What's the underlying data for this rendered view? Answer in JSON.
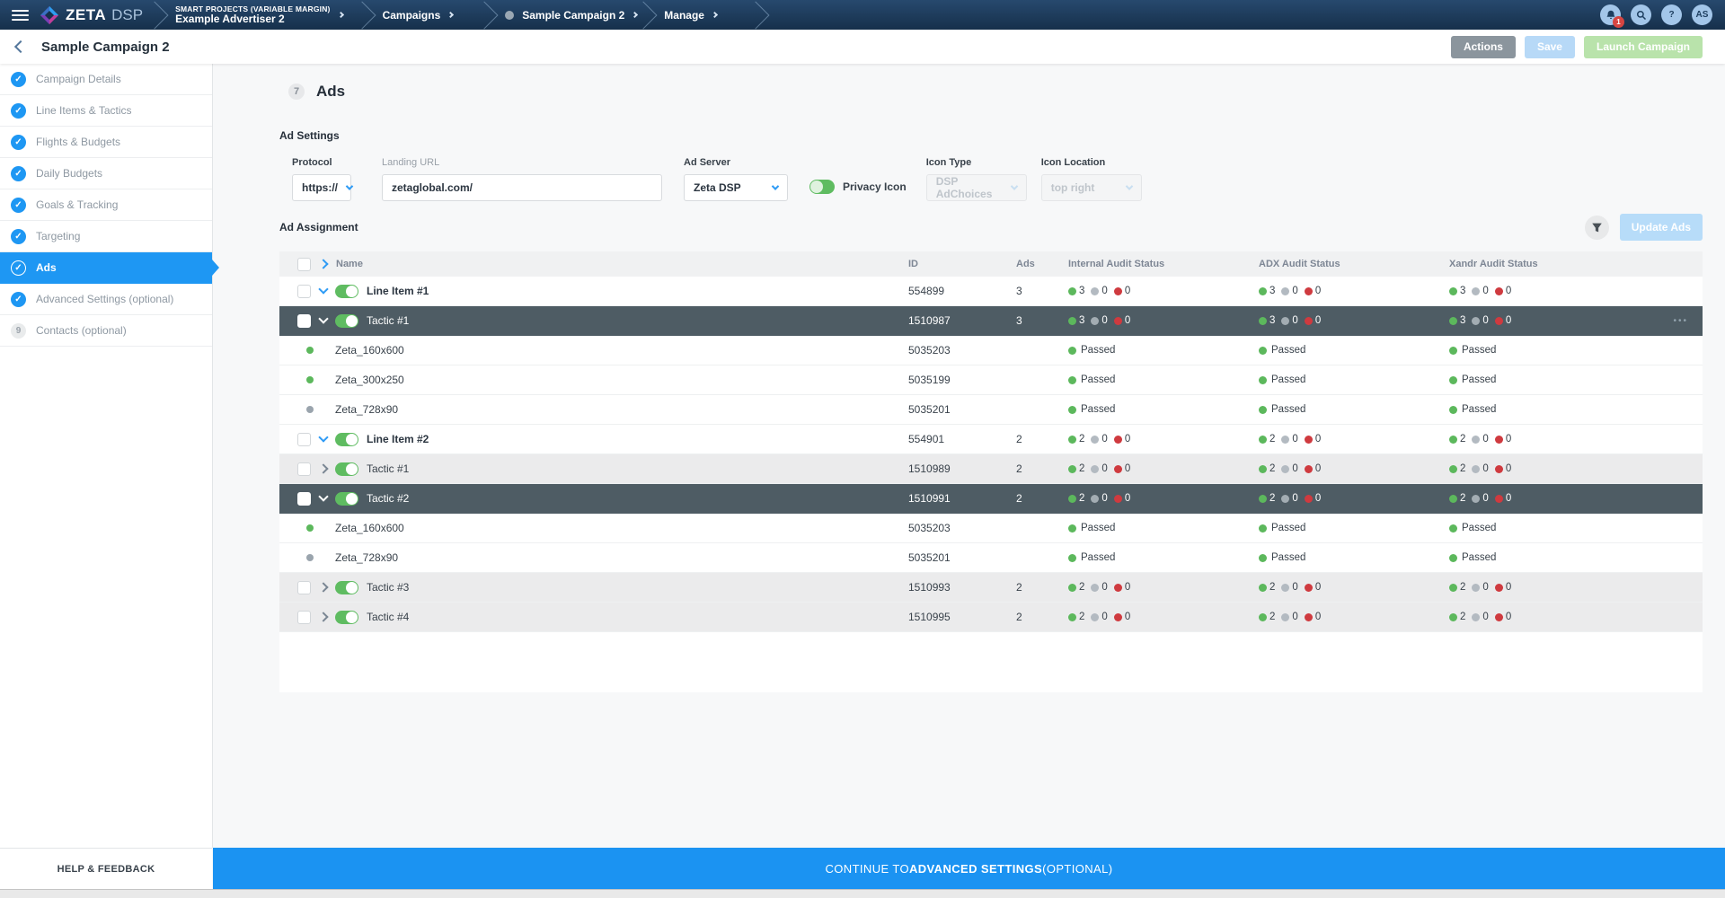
{
  "topnav": {
    "brand": "ZETA",
    "brand_suffix": "DSP",
    "breadcrumbs": {
      "project": "SMART PROJECTS (VARIABLE MARGIN)",
      "advertiser": "Example Advertiser 2",
      "campaigns": "Campaigns",
      "campaign": "Sample Campaign 2",
      "section": "Manage"
    },
    "notification_count": "1",
    "help_symbol": "?",
    "avatar_initials": "AS"
  },
  "header": {
    "title": "Sample Campaign 2",
    "actions_button": "Actions",
    "save_button": "Save",
    "launch_button": "Launch Campaign"
  },
  "sidebar": {
    "items": [
      {
        "label": "Campaign Details",
        "state": "done"
      },
      {
        "label": "Line Items & Tactics",
        "state": "done"
      },
      {
        "label": "Flights & Budgets",
        "state": "done"
      },
      {
        "label": "Daily Budgets",
        "state": "done"
      },
      {
        "label": "Goals & Tracking",
        "state": "done"
      },
      {
        "label": "Targeting",
        "state": "done"
      },
      {
        "label": "Ads",
        "state": "active"
      },
      {
        "label": "Advanced Settings (optional)",
        "state": "done"
      },
      {
        "label": "Contacts (optional)",
        "state": "pending",
        "number": "9"
      }
    ],
    "help_button": "HELP & FEEDBACK"
  },
  "main": {
    "step_number": "7",
    "title": "Ads",
    "ad_settings": {
      "heading": "Ad Settings",
      "protocol_label": "Protocol",
      "protocol_value": "https://",
      "landing_url_label": "Landing URL",
      "landing_url_value": "zetaglobal.com/",
      "ad_server_label": "Ad Server",
      "ad_server_value": "Zeta DSP",
      "privacy_icon_label": "Privacy Icon",
      "privacy_icon_enabled": true,
      "icon_type_label": "Icon Type",
      "icon_type_value": "DSP AdChoices",
      "icon_type_disabled": true,
      "icon_location_label": "Icon Location",
      "icon_location_value": "top right",
      "icon_location_disabled": true
    },
    "ad_assignment": {
      "heading": "Ad Assignment",
      "update_button": "Update Ads",
      "columns": [
        "Name",
        "ID",
        "Ads",
        "Internal Audit Status",
        "ADX Audit Status",
        "Xandr Audit Status"
      ],
      "rows": [
        {
          "type": "lineitem",
          "name": "Line Item #1",
          "id": "554899",
          "ads": "3",
          "expanded": true,
          "enabled": true,
          "selected": false,
          "shaded": false,
          "menu": false,
          "audits": [
            {
              "g": "3",
              "n": "0",
              "r": "0"
            },
            {
              "g": "3",
              "n": "0",
              "r": "0"
            },
            {
              "g": "3",
              "n": "0",
              "r": "0"
            }
          ]
        },
        {
          "type": "tactic",
          "name": "Tactic #1",
          "id": "1510987",
          "ads": "3",
          "expanded": true,
          "enabled": true,
          "selected": true,
          "shaded": false,
          "menu": true,
          "audits": [
            {
              "g": "3",
              "n": "0",
              "r": "0"
            },
            {
              "g": "3",
              "n": "0",
              "r": "0"
            },
            {
              "g": "3",
              "n": "0",
              "r": "0"
            }
          ]
        },
        {
          "type": "creative",
          "name": "Zeta_160x600",
          "id": "5035203",
          "dot": "green",
          "audits": [
            "Passed",
            "Passed",
            "Passed"
          ]
        },
        {
          "type": "creative",
          "name": "Zeta_300x250",
          "id": "5035199",
          "dot": "green",
          "audits": [
            "Passed",
            "Passed",
            "Passed"
          ]
        },
        {
          "type": "creative",
          "name": "Zeta_728x90",
          "id": "5035201",
          "dot": "gray",
          "audits": [
            "Passed",
            "Passed",
            "Passed"
          ]
        },
        {
          "type": "lineitem",
          "name": "Line Item #2",
          "id": "554901",
          "ads": "2",
          "expanded": true,
          "enabled": true,
          "selected": false,
          "shaded": false,
          "menu": false,
          "audits": [
            {
              "g": "2",
              "n": "0",
              "r": "0"
            },
            {
              "g": "2",
              "n": "0",
              "r": "0"
            },
            {
              "g": "2",
              "n": "0",
              "r": "0"
            }
          ]
        },
        {
          "type": "tactic",
          "name": "Tactic #1",
          "id": "1510989",
          "ads": "2",
          "expanded": false,
          "enabled": true,
          "selected": false,
          "shaded": true,
          "menu": false,
          "audits": [
            {
              "g": "2",
              "n": "0",
              "r": "0"
            },
            {
              "g": "2",
              "n": "0",
              "r": "0"
            },
            {
              "g": "2",
              "n": "0",
              "r": "0"
            }
          ]
        },
        {
          "type": "tactic",
          "name": "Tactic #2",
          "id": "1510991",
          "ads": "2",
          "expanded": true,
          "enabled": true,
          "selected": true,
          "shaded": false,
          "menu": false,
          "audits": [
            {
              "g": "2",
              "n": "0",
              "r": "0"
            },
            {
              "g": "2",
              "n": "0",
              "r": "0"
            },
            {
              "g": "2",
              "n": "0",
              "r": "0"
            }
          ]
        },
        {
          "type": "creative",
          "name": "Zeta_160x600",
          "id": "5035203",
          "dot": "green",
          "audits": [
            "Passed",
            "Passed",
            "Passed"
          ]
        },
        {
          "type": "creative",
          "name": "Zeta_728x90",
          "id": "5035201",
          "dot": "gray",
          "audits": [
            "Passed",
            "Passed",
            "Passed"
          ]
        },
        {
          "type": "tactic",
          "name": "Tactic #3",
          "id": "1510993",
          "ads": "2",
          "expanded": false,
          "enabled": true,
          "selected": false,
          "shaded": true,
          "menu": false,
          "audits": [
            {
              "g": "2",
              "n": "0",
              "r": "0"
            },
            {
              "g": "2",
              "n": "0",
              "r": "0"
            },
            {
              "g": "2",
              "n": "0",
              "r": "0"
            }
          ]
        },
        {
          "type": "tactic",
          "name": "Tactic #4",
          "id": "1510995",
          "ads": "2",
          "expanded": false,
          "enabled": true,
          "selected": false,
          "shaded": true,
          "menu": false,
          "audits": [
            {
              "g": "2",
              "n": "0",
              "r": "0"
            },
            {
              "g": "2",
              "n": "0",
              "r": "0"
            },
            {
              "g": "2",
              "n": "0",
              "r": "0"
            }
          ]
        }
      ]
    }
  },
  "footer": {
    "continue_prefix": "CONTINUE TO ",
    "continue_bold": "ADVANCED SETTINGS",
    "continue_suffix": " (OPTIONAL)"
  },
  "colors": {
    "navy": "#1d3e5f",
    "accent_blue": "#1e97f3",
    "footer_blue": "#1b93f2",
    "selected_row": "#4e5c64",
    "shaded_row": "#ebebec",
    "status_green": "#5cb85c",
    "status_gray": "#b3bac1",
    "status_red": "#cf3a3f"
  }
}
